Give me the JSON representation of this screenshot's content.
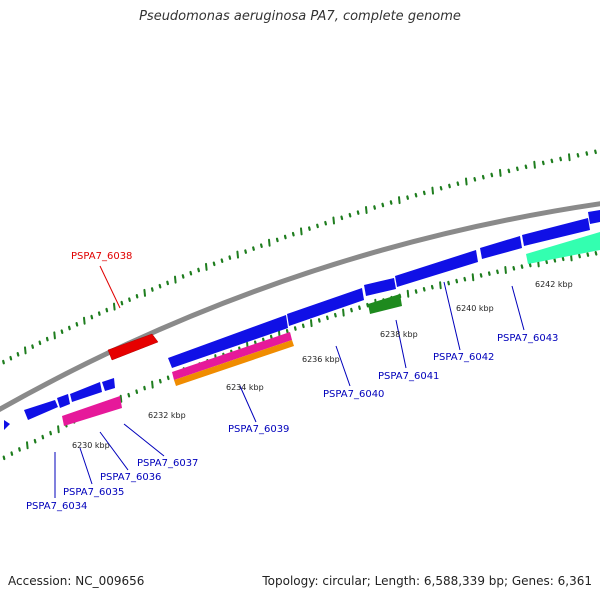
{
  "title": "Pseudomonas aeruginosa PA7, complete genome",
  "footer": {
    "accession": "Accession: NC_009656",
    "summary": "Topology: circular; Length: 6,588,339 bp; Genes: 6,361"
  },
  "colors": {
    "backbone": "#8a8a8a",
    "tick": "#1e7d1e",
    "gene_label": "#0000bb",
    "highlight_label": "#e00000"
  },
  "kbp_labels": [
    "6230 kbp",
    "6232 kbp",
    "6234 kbp",
    "6236 kbp",
    "6238 kbp",
    "6240 kbp",
    "6242 kbp"
  ],
  "genes": [
    {
      "label": "PSPA7_6034"
    },
    {
      "label": "PSPA7_6035"
    },
    {
      "label": "PSPA7_6036"
    },
    {
      "label": "PSPA7_6037"
    },
    {
      "label": "PSPA7_6038",
      "highlight": true
    },
    {
      "label": "PSPA7_6039"
    },
    {
      "label": "PSPA7_6040"
    },
    {
      "label": "PSPA7_6041"
    },
    {
      "label": "PSPA7_6042"
    },
    {
      "label": "PSPA7_6043"
    }
  ]
}
